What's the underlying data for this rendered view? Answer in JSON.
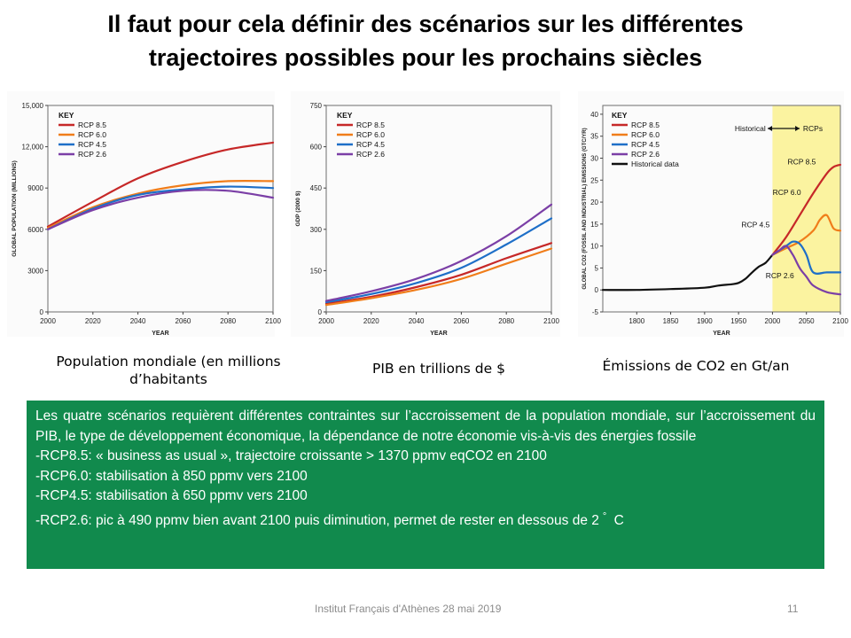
{
  "slide": {
    "title_line1": "Il faut pour cela définir des scénarios sur les différentes",
    "title_line2": "trajectoires possibles pour les prochains siècles"
  },
  "captions": {
    "population_line1": "Population mondiale (en millions",
    "population_line2": "d’habitants",
    "gdp": "PIB en trillions de $",
    "emissions": "Émissions de CO2 en Gt/an"
  },
  "textbox": {
    "intro": "Les quatre scénarios requièrent différentes contraintes sur l’accroissement de la population mondiale, sur l’accroissement du PIB, le type de développement économique, la dépendance de notre économie vis-à-vis des énergies fossile",
    "rcp85": "-RCP8.5: « business as usual », trajectoire croissante > 1370 ppmv eqCO2 en 2100",
    "rcp60": "-RCP6.0: stabilisation à 850 ppmv vers 2100",
    "rcp45": "-RCP4.5: stabilisation à 650 ppmv vers 2100",
    "rcp26": "-RCP2.6: pic à 490 ppmv bien avant 2100 puis diminution, permet de rester en dessous de 2",
    "degree": "°",
    "celsius": "C",
    "background_color": "#118a4d"
  },
  "footer": {
    "text": "Institut Français d'Athènes 28 mai 2019",
    "page": "11"
  },
  "colors": {
    "RCP 8.5": "#c62828",
    "RCP 6.0": "#f07d1a",
    "RCP 4.5": "#1e6fc8",
    "RCP 2.6": "#7b3fa6",
    "Historical data": "#111111"
  },
  "chart_data": [
    {
      "type": "line",
      "ylabel": "GLOBAL POPULATION (MILLIONS)",
      "xlabel": "YEAR",
      "xlim": [
        2000,
        2100
      ],
      "ylim": [
        0,
        15000
      ],
      "xticks": [
        "2000",
        "2020",
        "2040",
        "2060",
        "2080",
        "2100"
      ],
      "yticks": [
        "0",
        "3000",
        "6000",
        "9000",
        "12,000",
        "15,000"
      ],
      "legend_title": "KEY",
      "legend_position": "top-left",
      "series": [
        {
          "name": "RCP 8.5",
          "x": [
            2000,
            2020,
            2040,
            2060,
            2080,
            2100
          ],
          "values": [
            6200,
            8000,
            9700,
            10900,
            11800,
            12300
          ]
        },
        {
          "name": "RCP 6.0",
          "x": [
            2000,
            2020,
            2040,
            2060,
            2080,
            2100
          ],
          "values": [
            6100,
            7600,
            8600,
            9200,
            9500,
            9500
          ]
        },
        {
          "name": "RCP 4.5",
          "x": [
            2000,
            2020,
            2040,
            2060,
            2080,
            2100
          ],
          "values": [
            6000,
            7500,
            8500,
            8900,
            9100,
            9000
          ]
        },
        {
          "name": "RCP 2.6",
          "x": [
            2000,
            2020,
            2040,
            2060,
            2080,
            2100
          ],
          "values": [
            6000,
            7400,
            8300,
            8800,
            8800,
            8300
          ]
        }
      ]
    },
    {
      "type": "line",
      "ylabel": "GDP (2000 $)",
      "xlabel": "YEAR",
      "xlim": [
        2000,
        2100
      ],
      "ylim": [
        0,
        750
      ],
      "xticks": [
        "2000",
        "2020",
        "2040",
        "2060",
        "2080",
        "2100"
      ],
      "yticks": [
        "0",
        "150",
        "300",
        "450",
        "600",
        "750"
      ],
      "legend_title": "KEY",
      "legend_position": "top-left",
      "series": [
        {
          "name": "RCP 8.5",
          "x": [
            2000,
            2020,
            2040,
            2060,
            2080,
            2100
          ],
          "values": [
            30,
            55,
            90,
            135,
            195,
            250
          ]
        },
        {
          "name": "RCP 6.0",
          "x": [
            2000,
            2020,
            2040,
            2060,
            2080,
            2100
          ],
          "values": [
            25,
            50,
            80,
            120,
            175,
            230
          ]
        },
        {
          "name": "RCP 4.5",
          "x": [
            2000,
            2020,
            2040,
            2060,
            2080,
            2100
          ],
          "values": [
            35,
            65,
            105,
            160,
            245,
            340
          ]
        },
        {
          "name": "RCP 2.6",
          "x": [
            2000,
            2020,
            2040,
            2060,
            2080,
            2100
          ],
          "values": [
            40,
            75,
            120,
            185,
            275,
            390
          ]
        }
      ]
    },
    {
      "type": "line",
      "ylabel": "GLOBAL CO2 (FOSSIL AND INDUSTRIAL) EMISSIONS (GTC/YR)",
      "xlabel": "YEAR",
      "xlim": [
        1750,
        2100
      ],
      "ylim": [
        -5,
        42
      ],
      "xticks": [
        "1800",
        "1850",
        "1900",
        "1950",
        "2000",
        "2050",
        "2100"
      ],
      "yticks": [
        "-5",
        "0",
        "5",
        "10",
        "15",
        "20",
        "25",
        "30",
        "35",
        "40"
      ],
      "legend_title": "KEY",
      "legend_position": "top-left",
      "annotations": [
        "Historical",
        "RCPs",
        "RCP 8.5",
        "RCP 6.0",
        "RCP 4.5",
        "RCP 2.6"
      ],
      "highlight_range": [
        2000,
        2100
      ],
      "series": [
        {
          "name": "Historical data",
          "x": [
            1750,
            1800,
            1850,
            1900,
            1920,
            1940,
            1950,
            1960,
            1970,
            1980,
            1990,
            2000
          ],
          "values": [
            0,
            0,
            0.2,
            0.5,
            1,
            1.3,
            1.6,
            2.5,
            4,
            5.3,
            6.2,
            8
          ]
        },
        {
          "name": "RCP 8.5",
          "x": [
            2000,
            2020,
            2040,
            2060,
            2080,
            2090,
            2100
          ],
          "values": [
            8,
            12,
            17,
            22,
            26.5,
            28,
            28.5
          ]
        },
        {
          "name": "RCP 6.0",
          "x": [
            2000,
            2020,
            2040,
            2060,
            2070,
            2080,
            2090,
            2100
          ],
          "values": [
            8,
            9.5,
            11,
            13.5,
            16,
            17,
            14,
            13.5
          ]
        },
        {
          "name": "RCP 4.5",
          "x": [
            2000,
            2020,
            2030,
            2040,
            2050,
            2060,
            2080,
            2100
          ],
          "values": [
            8,
            10,
            11,
            10.5,
            8,
            4,
            4,
            4
          ]
        },
        {
          "name": "RCP 2.6",
          "x": [
            2000,
            2010,
            2020,
            2030,
            2040,
            2050,
            2060,
            2080,
            2100
          ],
          "values": [
            8,
            9,
            10,
            8,
            5,
            3,
            1,
            -0.5,
            -1
          ]
        }
      ]
    }
  ]
}
